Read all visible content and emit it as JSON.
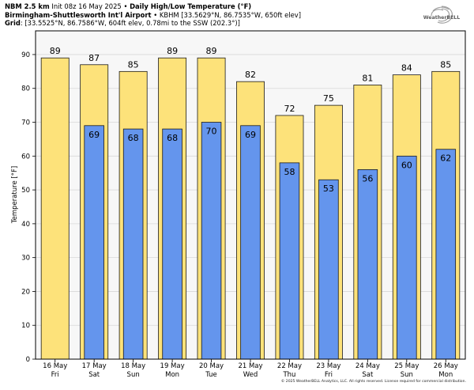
{
  "header": {
    "line1_bold": "NBM 2.5 km",
    "line1_init": "Init 08z 16 May 2025",
    "line1_sep": "•",
    "line1_title": "Daily High/Low Temperature (°F)",
    "line2_bold": "Birmingham-Shuttlesworth Int'l Airport",
    "line2_sep": "•",
    "line2_rest": "KBHM [33.5629°N, 86.7535°W, 650ft elev]",
    "line3_bold": "Grid",
    "line3_rest": ": [33.5525°N, 86.7586°W, 604ft elev, 0.78mi to the SSW (202.3°)]"
  },
  "logo": {
    "text": "WeatherBELL",
    "icon": "weatherbell-swirl-logo"
  },
  "copyright": "© 2025 WeatherBELL Analytics, LLC. All rights reserved. License required for commercial distribution.",
  "colors": {
    "high_fill": "#FDE27A",
    "low_fill": "#6495ED",
    "plot_bg": "#F7F7F7",
    "grid": "#D8D8D8",
    "bar_edge": "#1A1A1A"
  },
  "chart_data": {
    "type": "bar",
    "title": "Daily High/Low Temperature (°F)",
    "xlabel": "",
    "ylabel": "Temperature [°F]",
    "ylim": [
      0,
      97
    ],
    "yticks": [
      0,
      10,
      20,
      30,
      40,
      50,
      60,
      70,
      80,
      90
    ],
    "grid": true,
    "categories": [
      {
        "date": "16 May",
        "day": "Fri"
      },
      {
        "date": "17 May",
        "day": "Sat"
      },
      {
        "date": "18 May",
        "day": "Sun"
      },
      {
        "date": "19 May",
        "day": "Mon"
      },
      {
        "date": "20 May",
        "day": "Tue"
      },
      {
        "date": "21 May",
        "day": "Wed"
      },
      {
        "date": "22 May",
        "day": "Thu"
      },
      {
        "date": "23 May",
        "day": "Fri"
      },
      {
        "date": "24 May",
        "day": "Sat"
      },
      {
        "date": "25 May",
        "day": "Sun"
      },
      {
        "date": "26 May",
        "day": "Mon"
      }
    ],
    "series": [
      {
        "name": "High",
        "values": [
          89,
          87,
          85,
          89,
          89,
          82,
          72,
          75,
          81,
          84,
          85
        ]
      },
      {
        "name": "Low",
        "values": [
          null,
          69,
          68,
          68,
          70,
          69,
          58,
          53,
          56,
          60,
          62
        ]
      }
    ]
  }
}
